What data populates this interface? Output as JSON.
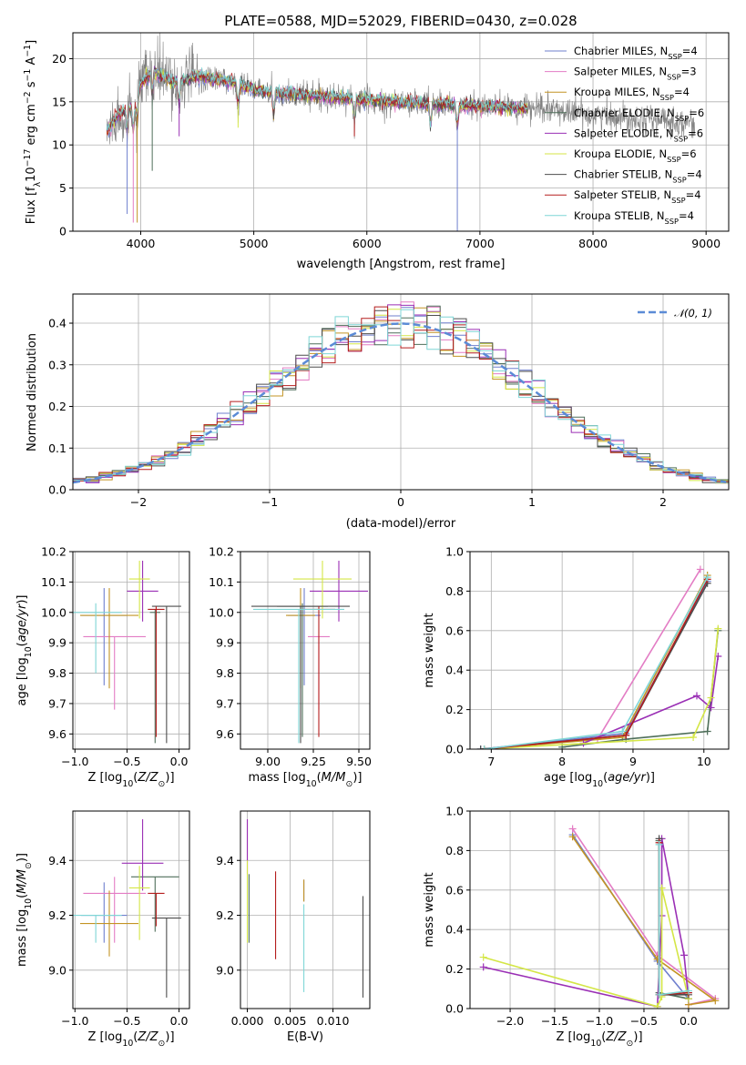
{
  "colors": [
    "#6f7fce",
    "#e37cc4",
    "#c39424",
    "#4f6f5a",
    "#9a2fb5",
    "#d4e646",
    "#4d4d4d",
    "#b51e1e",
    "#7fd6d6"
  ],
  "models": [
    "Chabrier MILES, N_SSP=4",
    "Salpeter MILES, N_SSP=3",
    "Kroupa MILES, N_SSP=4",
    "Chabrier ELODIE, N_SSP=6",
    "Salpeter ELODIE, N_SSP=6",
    "Kroupa ELODIE, N_SSP=6",
    "Chabrier STELIB, N_SSP=4",
    "Salpeter STELIB, N_SSP=4",
    "Kroupa STELIB, N_SSP=4"
  ],
  "chart_data": [
    {
      "id": "spectrum",
      "type": "line",
      "title": "PLATE=0588, MJD=52029, FIBERID=0430, z=0.028",
      "xlabel": "wavelength [Angstrom, rest frame]",
      "ylabel": "Flux [f_λ 10^-17 erg cm^-2 s^-1 A^-1]",
      "xlim": [
        3400,
        9200
      ],
      "ylim": [
        0,
        23
      ],
      "xticks": [
        "4000",
        "5000",
        "6000",
        "7000",
        "8000",
        "9000"
      ],
      "yticks": [
        "0",
        "5",
        "10",
        "15",
        "20"
      ],
      "legend_position": "top-right",
      "legend": [
        {
          "name": "Chabrier MILES",
          "nssp": "4"
        },
        {
          "name": "Salpeter MILES",
          "nssp": "3"
        },
        {
          "name": "Kroupa MILES",
          "nssp": "4"
        },
        {
          "name": "Chabrier ELODIE",
          "nssp": "6"
        },
        {
          "name": "Salpeter ELODIE",
          "nssp": "6"
        },
        {
          "name": "Kroupa ELODIE",
          "nssp": "6"
        },
        {
          "name": "Chabrier STELIB",
          "nssp": "4"
        },
        {
          "name": "Salpeter STELIB",
          "nssp": "4"
        },
        {
          "name": "Kroupa STELIB",
          "nssp": "4"
        }
      ],
      "data_series": {
        "name": "data",
        "color": "#808080"
      },
      "continuum_points": [
        [
          3700,
          11.5
        ],
        [
          3800,
          13.5
        ],
        [
          3950,
          14.5
        ],
        [
          4000,
          17.0
        ],
        [
          4100,
          18.5
        ],
        [
          4300,
          17.2
        ],
        [
          4500,
          18.0
        ],
        [
          4800,
          17.3
        ],
        [
          5000,
          16.4
        ],
        [
          5200,
          16.0
        ],
        [
          5500,
          15.8
        ],
        [
          5800,
          15.4
        ],
        [
          6000,
          15.2
        ],
        [
          6500,
          14.8
        ],
        [
          7000,
          14.5
        ],
        [
          7400,
          14.2
        ],
        [
          7700,
          14.0
        ],
        [
          8000,
          13.5
        ],
        [
          8500,
          13.0
        ],
        [
          8900,
          12.5
        ]
      ],
      "absorption_lines": [
        [
          3880,
          2
        ],
        [
          3934,
          1
        ],
        [
          3969,
          1
        ],
        [
          4102,
          7
        ],
        [
          4340,
          11
        ],
        [
          4861,
          12
        ],
        [
          5175,
          13
        ],
        [
          5890,
          11
        ],
        [
          6563,
          12
        ],
        [
          6800,
          0
        ]
      ],
      "models_end_wavelength": 7420
    },
    {
      "id": "residuals",
      "type": "histogram",
      "xlabel": "(data-model)/error",
      "ylabel": "Normed distribution",
      "xlim": [
        -2.5,
        2.5
      ],
      "ylim": [
        0,
        0.47
      ],
      "xticks": [
        "−2",
        "−1",
        "0",
        "1",
        "2"
      ],
      "yticks": [
        "0.0",
        "0.1",
        "0.2",
        "0.3",
        "0.4"
      ],
      "bin_width": 0.1,
      "reference_curve": {
        "name": "𝒩(0, 1)",
        "mean": 0,
        "sigma": 1,
        "color": "#5b8bd6",
        "style": "dashed"
      },
      "legend_position": "top-right"
    },
    {
      "id": "age_vs_Z",
      "type": "errorbar",
      "xlabel": "Z [log10(Z/Z☉)]",
      "ylabel": "age  [log10(age/yr)]",
      "xlim": [
        -1.02,
        0.1
      ],
      "ylim": [
        9.55,
        10.2
      ],
      "xticks": [
        "−1.0",
        "−0.5",
        "0.0"
      ],
      "yticks": [
        "9.6",
        "9.7",
        "9.8",
        "9.9",
        "10.0",
        "10.1",
        "10.2"
      ],
      "points": [
        {
          "x": -0.72,
          "y": 9.99,
          "xerr": 0.22,
          "yerr": [
            0.23,
            0.09
          ]
        },
        {
          "x": -0.62,
          "y": 9.92,
          "xerr": 0.3,
          "yerr": [
            0.24,
            0.0
          ]
        },
        {
          "x": -0.67,
          "y": 9.99,
          "xerr": 0.28,
          "yerr": [
            0.24,
            0.09
          ]
        },
        {
          "x": -0.23,
          "y": 10.0,
          "xerr": 0.05,
          "yerr": [
            0.43,
            0.01
          ]
        },
        {
          "x": -0.35,
          "y": 10.07,
          "xerr": 0.15,
          "yerr": [
            0.1,
            0.1
          ]
        },
        {
          "x": -0.38,
          "y": 10.11,
          "xerr": 0.1,
          "yerr": [
            0.13,
            0.06
          ]
        },
        {
          "x": -0.12,
          "y": 10.02,
          "xerr": 0.14,
          "yerr": [
            0.45,
            0.0
          ]
        },
        {
          "x": -0.22,
          "y": 10.01,
          "xerr": 0.08,
          "yerr": [
            0.42,
            0.01
          ]
        },
        {
          "x": -0.8,
          "y": 10.0,
          "xerr": 0.25,
          "yerr": [
            0.2,
            0.03
          ]
        }
      ]
    },
    {
      "id": "age_vs_mass",
      "type": "errorbar",
      "xlabel": "mass [log10(M/M☉)]",
      "ylabel": "",
      "xlim": [
        8.85,
        9.56
      ],
      "ylim": [
        9.55,
        10.2
      ],
      "xticks": [
        "9.00",
        "9.25",
        "9.50"
      ],
      "yticks": [
        "9.6",
        "9.7",
        "9.8",
        "9.9",
        "10.0",
        "10.1",
        "10.2"
      ],
      "points": [
        {
          "x": 9.2,
          "y": 9.99,
          "xerr": 0.09,
          "yerr": [
            0.23,
            0.09
          ]
        },
        {
          "x": 9.28,
          "y": 9.92,
          "xerr": 0.06,
          "yerr": [
            0.24,
            0.0
          ]
        },
        {
          "x": 9.18,
          "y": 9.99,
          "xerr": 0.08,
          "yerr": [
            0.24,
            0.09
          ]
        },
        {
          "x": 9.19,
          "y": 10.02,
          "xerr": 0.14,
          "yerr": [
            0.43,
            0.01
          ]
        },
        {
          "x": 9.39,
          "y": 10.07,
          "xerr": 0.16,
          "yerr": [
            0.1,
            0.1
          ]
        },
        {
          "x": 9.3,
          "y": 10.11,
          "xerr": 0.16,
          "yerr": [
            0.13,
            0.06
          ]
        },
        {
          "x": 9.18,
          "y": 10.02,
          "xerr": 0.27,
          "yerr": [
            0.45,
            0.0
          ]
        },
        {
          "x": 9.28,
          "y": 10.01,
          "xerr": 0.09,
          "yerr": [
            0.42,
            0.01
          ]
        },
        {
          "x": 9.17,
          "y": 10.01,
          "xerr": 0.25,
          "yerr": [
            0.44,
            0.0
          ]
        }
      ]
    },
    {
      "id": "weight_vs_age",
      "type": "line",
      "xlabel": "age  [log10(age/yr)]",
      "ylabel": "mass weight",
      "xlim": [
        6.7,
        10.35
      ],
      "ylim": [
        0,
        1.0
      ],
      "xticks": [
        "7",
        "8",
        "9",
        "10"
      ],
      "yticks": [
        "0.0",
        "0.2",
        "0.4",
        "0.6",
        "0.8",
        "1.0"
      ],
      "series": [
        {
          "x": [
            6.85,
            8.9,
            10.05
          ],
          "y": [
            0.0,
            0.08,
            0.85
          ]
        },
        {
          "x": [
            8.5,
            9.95
          ],
          "y": [
            0.05,
            0.91
          ]
        },
        {
          "x": [
            6.9,
            8.85,
            10.05
          ],
          "y": [
            0.0,
            0.06,
            0.88
          ]
        },
        {
          "x": [
            8.0,
            8.9,
            10.05,
            10.2
          ],
          "y": [
            0.01,
            0.05,
            0.09,
            0.6
          ]
        },
        {
          "x": [
            8.3,
            9.9,
            10.1,
            10.2
          ],
          "y": [
            0.03,
            0.27,
            0.21,
            0.47
          ]
        },
        {
          "x": [
            6.9,
            9.85,
            10.1,
            10.2
          ],
          "y": [
            0.0,
            0.06,
            0.26,
            0.61
          ]
        },
        {
          "x": [
            6.85,
            8.9,
            10.05
          ],
          "y": [
            0.0,
            0.07,
            0.84
          ]
        },
        {
          "x": [
            6.9,
            8.9,
            10.05
          ],
          "y": [
            0.0,
            0.07,
            0.86
          ]
        },
        {
          "x": [
            6.9,
            8.85,
            10.05
          ],
          "y": [
            0.0,
            0.09,
            0.87
          ]
        }
      ]
    },
    {
      "id": "mass_vs_Z",
      "type": "errorbar",
      "xlabel": "Z [log10(Z/Z☉)]",
      "ylabel": "mass [log10(M/M☉)]",
      "xlim": [
        -1.02,
        0.1
      ],
      "ylim": [
        8.86,
        9.58
      ],
      "xticks": [
        "−1.0",
        "−0.5",
        "0.0"
      ],
      "yticks": [
        "9.0",
        "9.2",
        "9.4"
      ],
      "points": [
        {
          "x": -0.72,
          "y": 9.2,
          "xerr": 0.22,
          "yerr": [
            0.1,
            0.12
          ]
        },
        {
          "x": -0.62,
          "y": 9.28,
          "xerr": 0.3,
          "yerr": [
            0.18,
            0.06
          ]
        },
        {
          "x": -0.67,
          "y": 9.17,
          "xerr": 0.28,
          "yerr": [
            0.12,
            0.12
          ]
        },
        {
          "x": -0.23,
          "y": 9.34,
          "xerr": 0.23,
          "yerr": [
            0.2,
            0.0
          ]
        },
        {
          "x": -0.35,
          "y": 9.39,
          "xerr": 0.2,
          "yerr": [
            0.1,
            0.16
          ]
        },
        {
          "x": -0.38,
          "y": 9.3,
          "xerr": 0.1,
          "yerr": [
            0.19,
            0.08
          ]
        },
        {
          "x": -0.12,
          "y": 9.19,
          "xerr": 0.14,
          "yerr": [
            0.29,
            0.0
          ]
        },
        {
          "x": -0.22,
          "y": 9.28,
          "xerr": 0.08,
          "yerr": [
            0.12,
            0.0
          ]
        },
        {
          "x": -0.8,
          "y": 9.2,
          "xerr": 0.25,
          "yerr": [
            0.1,
            0.0
          ]
        }
      ]
    },
    {
      "id": "mass_vs_EBV",
      "type": "errorbar",
      "xlabel": "E(B-V)",
      "ylabel": "",
      "xlim": [
        -0.0008,
        0.0143
      ],
      "ylim": [
        8.86,
        9.58
      ],
      "xticks": [
        "0.000",
        "0.005",
        "0.010"
      ],
      "yticks": [
        "9.0",
        "9.2",
        "9.4"
      ],
      "points": [
        {
          "x": 0.0066,
          "y": 9.29,
          "yerr": [
            0.04,
            0.04
          ]
        },
        {
          "x": 0.0,
          "y": 9.45,
          "yerr": [
            0.05,
            0.1
          ]
        },
        {
          "x": 0.0066,
          "y": 9.27,
          "yerr": [
            0.02,
            0.06
          ]
        },
        {
          "x": 0.0002,
          "y": 9.25,
          "yerr": [
            0.15,
            0.1
          ]
        },
        {
          "x": 0.0,
          "y": 9.45,
          "yerr": [
            0.1,
            0.1
          ]
        },
        {
          "x": 0.0,
          "y": 9.28,
          "yerr": [
            0.18,
            0.12
          ]
        },
        {
          "x": 0.0135,
          "y": 9.1,
          "yerr": [
            0.2,
            0.17
          ]
        },
        {
          "x": 0.0033,
          "y": 9.2,
          "yerr": [
            0.16,
            0.16
          ]
        },
        {
          "x": 0.0066,
          "y": 9.12,
          "yerr": [
            0.2,
            0.12
          ]
        }
      ]
    },
    {
      "id": "weight_vs_Z",
      "type": "line",
      "xlabel": "Z [log10(Z/Z☉)]",
      "ylabel": "mass weight",
      "xlim": [
        -2.45,
        0.45
      ],
      "ylim": [
        0,
        1.0
      ],
      "xticks": [
        "−2.0",
        "−1.5",
        "−1.0",
        "−0.5",
        "0.0"
      ],
      "yticks": [
        "0.0",
        "0.2",
        "0.4",
        "0.6",
        "0.8",
        "1.0"
      ],
      "series": [
        {
          "x": [
            -1.3,
            -0.35,
            0.0
          ],
          "y": [
            0.88,
            0.24,
            0.05
          ]
        },
        {
          "x": [
            -1.3,
            -0.35,
            0.3,
            0.0
          ],
          "y": [
            0.91,
            0.27,
            0.05,
            0.02
          ]
        },
        {
          "x": [
            -1.3,
            -0.35,
            0.3,
            0.0
          ],
          "y": [
            0.87,
            0.25,
            0.04,
            0.02
          ]
        },
        {
          "x": [
            -0.33,
            -0.33,
            0.0
          ],
          "y": [
            0.85,
            0.08,
            0.05
          ]
        },
        {
          "x": [
            -2.3,
            -0.35,
            -0.3,
            -0.3,
            -0.05,
            0.0
          ],
          "y": [
            0.21,
            0.01,
            0.47,
            0.86,
            0.27,
            0.05
          ]
        },
        {
          "x": [
            -2.3,
            -0.35,
            -0.3,
            -0.3,
            0.0
          ],
          "y": [
            0.26,
            0.01,
            0.06,
            0.61,
            0.05
          ]
        },
        {
          "x": [
            -0.33,
            -0.33,
            0.0
          ],
          "y": [
            0.86,
            0.07,
            0.07
          ]
        },
        {
          "x": [
            -0.33,
            -0.33,
            0.0
          ],
          "y": [
            0.84,
            0.07,
            0.08
          ]
        },
        {
          "x": [
            -0.33,
            -0.33,
            0.0
          ],
          "y": [
            0.83,
            0.07,
            0.09
          ]
        }
      ]
    }
  ]
}
